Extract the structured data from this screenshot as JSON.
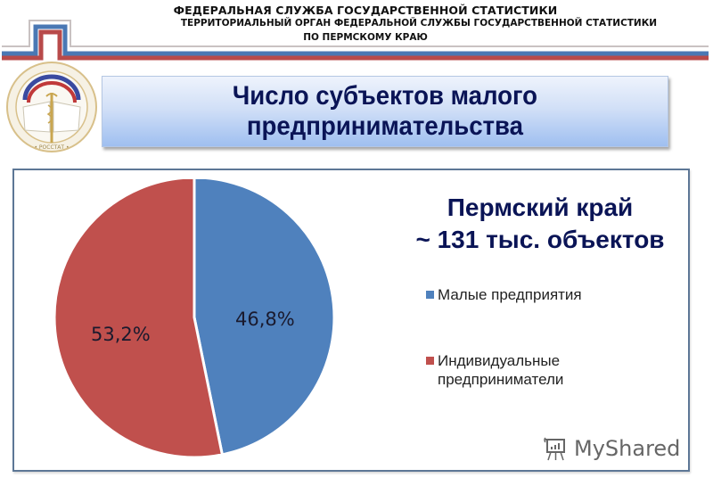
{
  "header": {
    "line1": "ФЕДЕРАЛЬНАЯ СЛУЖБА ГОСУДАРСТВЕННОЙ СТАТИСТИКИ",
    "line2": "ТЕРРИТОРИАЛЬНЫЙ ОРГАН ФЕДЕРАЛЬНОЙ СЛУЖБЫ ГОСУДАРСТВЕННОЙ СТАТИСТИКИ",
    "line3": "ПО ПЕРМСКОМУ КРАЮ",
    "logo_icon": "rosstat-seal-icon",
    "stripe_colors": [
      "#c8c0c0",
      "#4a78b4",
      "#b84a4a"
    ]
  },
  "slide": {
    "title_line1": "Число субъектов малого",
    "title_line2": "предпринимательства"
  },
  "chart_data": {
    "type": "pie",
    "title": "Пермский край ~ 131 тыс. объектов",
    "title_line1": "Пермский край",
    "title_line2": "~ 131 тыс. объектов",
    "categories": [
      "Малые предприятия",
      "Индивидуальные предприниматели"
    ],
    "values": [
      46.8,
      53.2
    ],
    "value_labels": [
      "46,8%",
      "53,2%"
    ],
    "colors": [
      "#4f81bd",
      "#c0504d"
    ],
    "legend_position": "right",
    "legend": [
      {
        "label": "Малые предприятия",
        "color": "#4f81bd"
      },
      {
        "label_line1": "Индивидуальные",
        "label_line2": "предприниматели",
        "color": "#c0504d"
      }
    ]
  },
  "watermark": {
    "text": "MyShared",
    "icon": "presentation-board-icon"
  }
}
